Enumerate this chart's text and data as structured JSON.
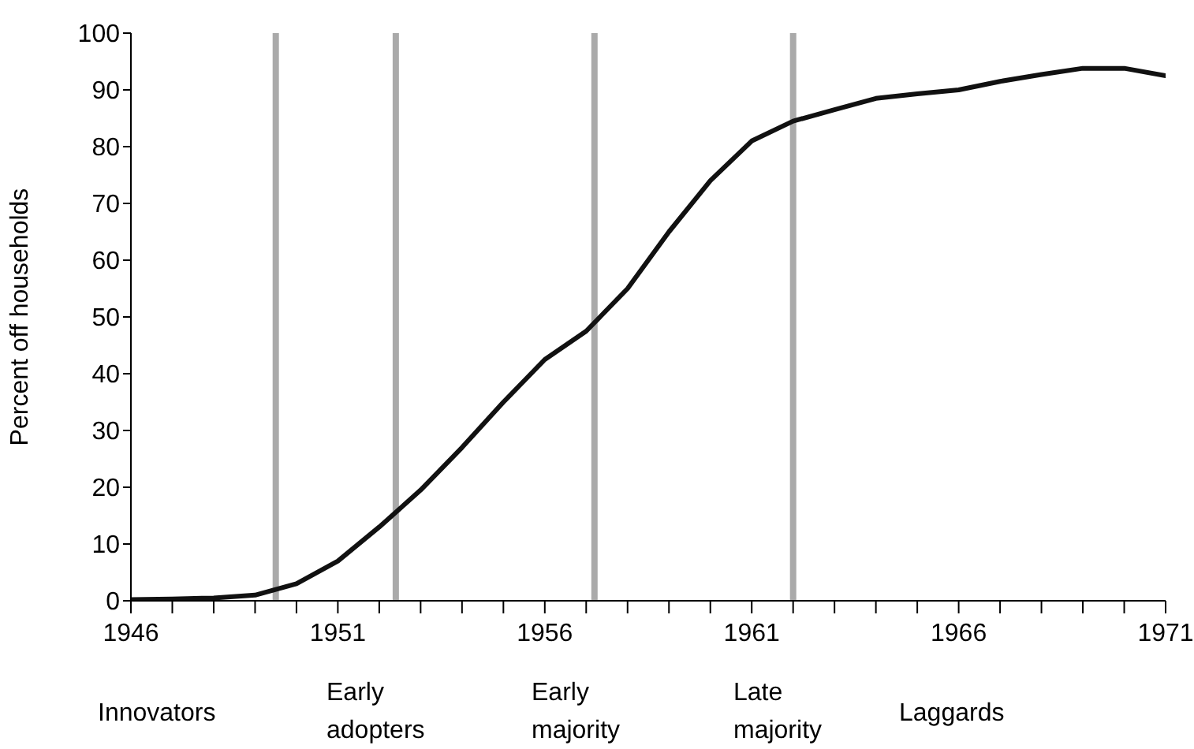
{
  "chart_data": {
    "type": "line",
    "ylabel": "Percent off households",
    "x": [
      1946,
      1947,
      1948,
      1949,
      1950,
      1951,
      1952,
      1953,
      1954,
      1955,
      1956,
      1957,
      1958,
      1959,
      1960,
      1961,
      1962,
      1963,
      1964,
      1965,
      1966,
      1967,
      1968,
      1969,
      1970,
      1971
    ],
    "series": [
      {
        "color": "#111111",
        "values": [
          0.2,
          0.3,
          0.5,
          1,
          3,
          7,
          13,
          19.5,
          27,
          35,
          42.5,
          47.5,
          55,
          65,
          74,
          81,
          84.5,
          86.5,
          88.5,
          89.3,
          90,
          91.5,
          92.7,
          93.8,
          93.8,
          92.5
        ]
      }
    ],
    "xlim": [
      1946,
      1971
    ],
    "xticks": [
      1946,
      {
        "value": 1947,
        "label": null
      },
      {
        "value": 1948,
        "label": null
      },
      {
        "value": 1949,
        "label": null
      },
      {
        "value": 1950,
        "label": null
      },
      1951,
      {
        "value": 1952,
        "label": null
      },
      {
        "value": 1953,
        "label": null
      },
      {
        "value": 1954,
        "label": null
      },
      {
        "value": 1955,
        "label": null
      },
      1956,
      {
        "value": 1957,
        "label": null
      },
      {
        "value": 1958,
        "label": null
      },
      {
        "value": 1959,
        "label": null
      },
      {
        "value": 1960,
        "label": null
      },
      1961,
      {
        "value": 1962,
        "label": null
      },
      {
        "value": 1963,
        "label": null
      },
      {
        "value": 1964,
        "label": null
      },
      {
        "value": 1965,
        "label": null
      },
      1966,
      {
        "value": 1967,
        "label": null
      },
      {
        "value": 1968,
        "label": null
      },
      {
        "value": 1969,
        "label": null
      },
      {
        "value": 1970,
        "label": null
      },
      1971
    ],
    "ylim": [
      0,
      100
    ],
    "yticks": [
      0,
      10,
      20,
      30,
      40,
      50,
      60,
      70,
      80,
      90,
      100
    ],
    "ref_lines": [
      {
        "axis": "x",
        "value": 1949.5,
        "color": "#aaaaaa"
      },
      {
        "axis": "x",
        "value": 1952.4,
        "color": "#aaaaaa"
      },
      {
        "axis": "x",
        "value": 1957.2,
        "color": "#aaaaaa"
      },
      {
        "axis": "x",
        "value": 1962,
        "color": "#aaaaaa"
      }
    ],
    "annotations": [
      "Innovators",
      "Early adopters",
      "Early majority",
      "Late majority",
      "Laggards"
    ],
    "grid": false,
    "legend": false,
    "marker": "none",
    "line_style": "solid"
  }
}
